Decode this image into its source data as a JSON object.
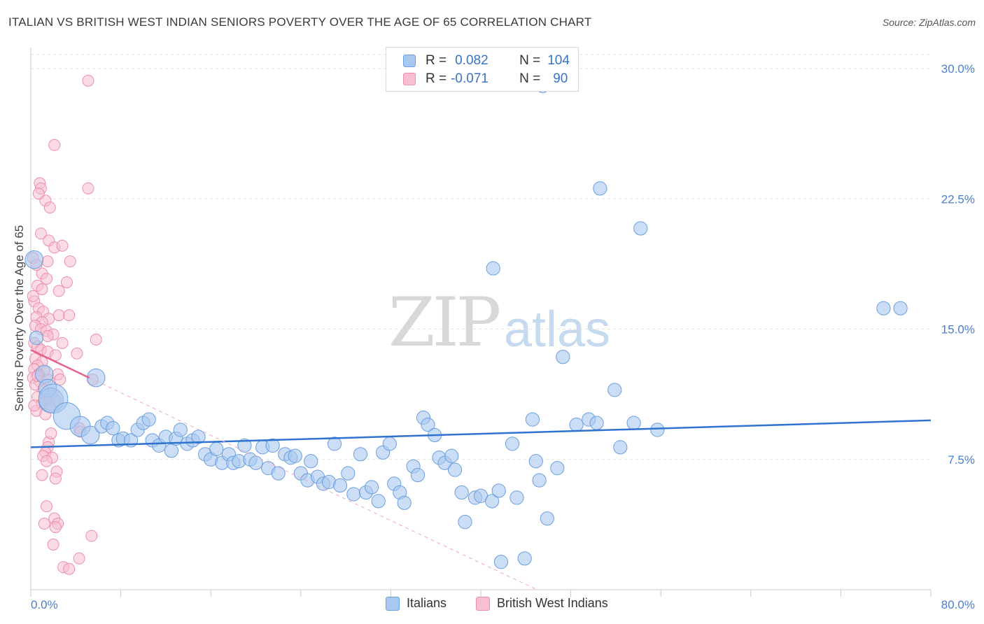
{
  "title": "ITALIAN VS BRITISH WEST INDIAN SENIORS POVERTY OVER THE AGE OF 65 CORRELATION CHART",
  "source": "Source: ZipAtlas.com",
  "watermark": {
    "zip": "ZIP",
    "atlas": "atlas"
  },
  "legend": {
    "rows": [
      {
        "r_label": "R =",
        "r_value": "0.082",
        "n_label": "N =",
        "n_value": "104"
      },
      {
        "r_label": "R =",
        "r_value": "-0.071",
        "n_label": "N =",
        "n_value": "90"
      }
    ]
  },
  "bottom_legend": {
    "italians": "Italians",
    "bwi": "British West Indians"
  },
  "colors": {
    "italians_fill": "#a9c8ef",
    "italians_stroke": "#6b9fe0",
    "italians_line": "#2f72d0",
    "bwi_fill": "#f7bfd0",
    "bwi_stroke": "#ec8eab",
    "bwi_line": "#e8608a",
    "tick_text": "#4a7fd0",
    "grid": "#e3e3e3"
  },
  "chart_data": {
    "type": "scatter",
    "title": "ITALIAN VS BRITISH WEST INDIAN SENIORS POVERTY OVER THE AGE OF 65 CORRELATION CHART",
    "xlabel": "",
    "ylabel": "Seniors Poverty Over the Age of 65",
    "xlim": [
      0,
      80
    ],
    "ylim": [
      0,
      30
    ],
    "x_tick_labels": [
      "0.0%",
      "80.0%"
    ],
    "y_ticks": [
      7.5,
      15.0,
      22.5,
      30.0
    ],
    "y_tick_labels": [
      "7.5%",
      "15.0%",
      "22.5%",
      "30.0%"
    ],
    "grid": true,
    "legend_position": "top-center",
    "series": [
      {
        "name": "Italians",
        "r": 0.082,
        "n": 104,
        "trend": {
          "x": [
            0,
            80
          ],
          "y": [
            8.2,
            9.75
          ]
        },
        "points": [
          [
            0.3,
            19.0,
            1.6
          ],
          [
            0.5,
            14.5,
            1.2
          ],
          [
            1.2,
            12.4,
            1.6
          ],
          [
            1.5,
            11.6,
            1.6
          ],
          [
            1.8,
            10.9,
            2.2
          ],
          [
            2.0,
            11.0,
            2.6
          ],
          [
            3.2,
            10.0,
            2.4
          ],
          [
            4.4,
            9.4,
            1.8
          ],
          [
            5.3,
            8.9,
            1.6
          ],
          [
            5.8,
            12.2,
            1.6
          ],
          [
            6.3,
            9.4,
            1.2
          ],
          [
            6.8,
            9.6,
            1.2
          ],
          [
            7.3,
            9.3,
            1.2
          ],
          [
            7.8,
            8.6,
            1.2
          ],
          [
            8.2,
            8.7,
            1.2
          ],
          [
            8.9,
            8.6,
            1.2
          ],
          [
            9.5,
            9.2,
            1.2
          ],
          [
            10.0,
            9.6,
            1.2
          ],
          [
            10.5,
            9.8,
            1.2
          ],
          [
            10.8,
            8.6,
            1.2
          ],
          [
            11.4,
            8.3,
            1.2
          ],
          [
            12.0,
            8.8,
            1.2
          ],
          [
            12.5,
            8.0,
            1.2
          ],
          [
            12.9,
            8.7,
            1.2
          ],
          [
            13.3,
            9.2,
            1.2
          ],
          [
            13.9,
            8.4,
            1.2
          ],
          [
            14.4,
            8.6,
            1.2
          ],
          [
            14.9,
            8.8,
            1.2
          ],
          [
            15.5,
            7.8,
            1.2
          ],
          [
            16.0,
            7.5,
            1.2
          ],
          [
            16.5,
            8.1,
            1.2
          ],
          [
            17.0,
            7.3,
            1.2
          ],
          [
            17.6,
            7.8,
            1.2
          ],
          [
            18.0,
            7.3,
            1.2
          ],
          [
            18.5,
            7.4,
            1.2
          ],
          [
            19.0,
            8.3,
            1.2
          ],
          [
            19.5,
            7.5,
            1.2
          ],
          [
            20.0,
            7.3,
            1.2
          ],
          [
            20.6,
            8.2,
            1.2
          ],
          [
            21.1,
            7.0,
            1.2
          ],
          [
            21.5,
            8.3,
            1.2
          ],
          [
            22.0,
            6.7,
            1.2
          ],
          [
            22.6,
            7.8,
            1.2
          ],
          [
            23.1,
            7.6,
            1.2
          ],
          [
            23.5,
            7.7,
            1.2
          ],
          [
            24.0,
            6.7,
            1.2
          ],
          [
            24.6,
            6.3,
            1.2
          ],
          [
            24.9,
            7.4,
            1.2
          ],
          [
            25.5,
            6.5,
            1.2
          ],
          [
            26.0,
            6.1,
            1.2
          ],
          [
            26.5,
            6.2,
            1.2
          ],
          [
            27.0,
            8.4,
            1.2
          ],
          [
            27.5,
            6.0,
            1.2
          ],
          [
            28.2,
            6.7,
            1.2
          ],
          [
            28.7,
            5.5,
            1.2
          ],
          [
            29.3,
            7.8,
            1.2
          ],
          [
            29.8,
            5.6,
            1.2
          ],
          [
            30.3,
            5.9,
            1.2
          ],
          [
            30.9,
            5.1,
            1.2
          ],
          [
            31.3,
            7.9,
            1.2
          ],
          [
            31.9,
            8.4,
            1.2
          ],
          [
            32.3,
            6.1,
            1.2
          ],
          [
            32.8,
            5.6,
            1.2
          ],
          [
            33.2,
            5.0,
            1.2
          ],
          [
            34.0,
            7.1,
            1.2
          ],
          [
            34.4,
            6.6,
            1.2
          ],
          [
            34.9,
            9.9,
            1.2
          ],
          [
            35.3,
            9.5,
            1.2
          ],
          [
            35.9,
            8.9,
            1.2
          ],
          [
            36.3,
            7.6,
            1.2
          ],
          [
            36.8,
            7.3,
            1.2
          ],
          [
            37.4,
            7.7,
            1.2
          ],
          [
            37.7,
            6.9,
            1.2
          ],
          [
            38.3,
            5.6,
            1.2
          ],
          [
            38.6,
            3.9,
            1.2
          ],
          [
            39.5,
            5.3,
            1.2
          ],
          [
            40.0,
            5.4,
            1.2
          ],
          [
            41.0,
            5.1,
            1.2
          ],
          [
            41.1,
            18.5,
            1.2
          ],
          [
            41.6,
            5.7,
            1.2
          ],
          [
            41.8,
            1.6,
            1.2
          ],
          [
            42.8,
            8.4,
            1.2
          ],
          [
            43.2,
            5.3,
            1.2
          ],
          [
            43.9,
            1.8,
            1.2
          ],
          [
            44.6,
            9.8,
            1.2
          ],
          [
            44.9,
            7.4,
            1.2
          ],
          [
            45.2,
            6.3,
            1.2
          ],
          [
            45.9,
            4.1,
            1.2
          ],
          [
            46.8,
            7.0,
            1.2
          ],
          [
            47.3,
            13.4,
            1.2
          ],
          [
            48.5,
            9.5,
            1.2
          ],
          [
            49.6,
            9.8,
            1.2
          ],
          [
            50.3,
            9.6,
            1.2
          ],
          [
            50.6,
            23.1,
            1.2
          ],
          [
            51.9,
            11.5,
            1.2
          ],
          [
            52.4,
            8.2,
            1.2
          ],
          [
            53.6,
            9.6,
            1.2
          ],
          [
            54.2,
            20.8,
            1.2
          ],
          [
            55.7,
            9.2,
            1.2
          ],
          [
            75.8,
            16.2,
            1.2
          ],
          [
            77.3,
            16.2,
            1.2
          ],
          [
            45.5,
            29.0,
            1.2
          ]
        ]
      },
      {
        "name": "British West Indians",
        "r": -0.071,
        "n": 90,
        "trend": {
          "x": [
            0,
            5.2
          ],
          "y": [
            13.8,
            12.2
          ]
        },
        "trend_extension": {
          "x": [
            5.2,
            45
          ],
          "y": [
            12.2,
            0.0
          ]
        },
        "points": [
          [
            5.1,
            29.3
          ],
          [
            2.1,
            25.6
          ],
          [
            0.8,
            23.4
          ],
          [
            0.9,
            23.1
          ],
          [
            5.1,
            23.1
          ],
          [
            1.3,
            22.4
          ],
          [
            1.7,
            22.0
          ],
          [
            0.7,
            22.8
          ],
          [
            0.9,
            20.5
          ],
          [
            1.6,
            20.1
          ],
          [
            2.1,
            19.7
          ],
          [
            2.8,
            19.8
          ],
          [
            0.2,
            19.1
          ],
          [
            3.5,
            18.9
          ],
          [
            1.5,
            18.9
          ],
          [
            1.0,
            18.2
          ],
          [
            1.4,
            17.9
          ],
          [
            3.2,
            17.7
          ],
          [
            0.6,
            17.5
          ],
          [
            1.0,
            17.3
          ],
          [
            2.5,
            17.2
          ],
          [
            0.3,
            16.6
          ],
          [
            0.7,
            16.2
          ],
          [
            1.1,
            16.0
          ],
          [
            0.5,
            15.7
          ],
          [
            2.5,
            15.8
          ],
          [
            3.4,
            15.8
          ],
          [
            1.6,
            15.6
          ],
          [
            1.0,
            15.4
          ],
          [
            0.4,
            15.2
          ],
          [
            0.9,
            15.0
          ],
          [
            1.4,
            14.9
          ],
          [
            2.0,
            14.7
          ],
          [
            1.5,
            14.6
          ],
          [
            5.8,
            14.4
          ],
          [
            0.3,
            14.2
          ],
          [
            0.6,
            14.0
          ],
          [
            0.9,
            13.8
          ],
          [
            1.5,
            13.7
          ],
          [
            2.2,
            13.5
          ],
          [
            4.1,
            13.6
          ],
          [
            0.4,
            13.3
          ],
          [
            1.0,
            13.1
          ],
          [
            0.6,
            12.9
          ],
          [
            0.3,
            12.7
          ],
          [
            1.2,
            12.6
          ],
          [
            0.7,
            12.4
          ],
          [
            2.4,
            12.4
          ],
          [
            0.2,
            12.2
          ],
          [
            0.8,
            12.0
          ],
          [
            1.5,
            12.1
          ],
          [
            2.6,
            12.1
          ],
          [
            5.5,
            12.1
          ],
          [
            0.4,
            11.8
          ],
          [
            1.1,
            11.5
          ],
          [
            1.9,
            11.3
          ],
          [
            0.6,
            11.1
          ],
          [
            1.4,
            11.0
          ],
          [
            2.2,
            10.9
          ],
          [
            1.0,
            10.7
          ],
          [
            1.7,
            10.5
          ],
          [
            0.5,
            10.3
          ],
          [
            1.3,
            10.1
          ],
          [
            4.3,
            9.3
          ],
          [
            4.4,
            9.1
          ],
          [
            1.6,
            8.5
          ],
          [
            1.5,
            8.2
          ],
          [
            1.3,
            7.9
          ],
          [
            1.1,
            7.7
          ],
          [
            1.9,
            7.6
          ],
          [
            1.4,
            7.4
          ],
          [
            2.3,
            6.8
          ],
          [
            1.0,
            6.6
          ],
          [
            2.2,
            6.4
          ],
          [
            1.4,
            4.8
          ],
          [
            2.1,
            4.1
          ],
          [
            1.2,
            3.8
          ],
          [
            2.4,
            3.8
          ],
          [
            2.2,
            3.6
          ],
          [
            5.4,
            3.1
          ],
          [
            2.0,
            2.6
          ],
          [
            4.3,
            1.8
          ],
          [
            2.9,
            1.3
          ],
          [
            3.4,
            1.2
          ],
          [
            0.6,
            12.3
          ],
          [
            0.3,
            10.6
          ],
          [
            1.8,
            9.0
          ],
          [
            0.2,
            16.9
          ],
          [
            2.8,
            14.2
          ],
          [
            0.5,
            18.7
          ]
        ]
      }
    ]
  }
}
